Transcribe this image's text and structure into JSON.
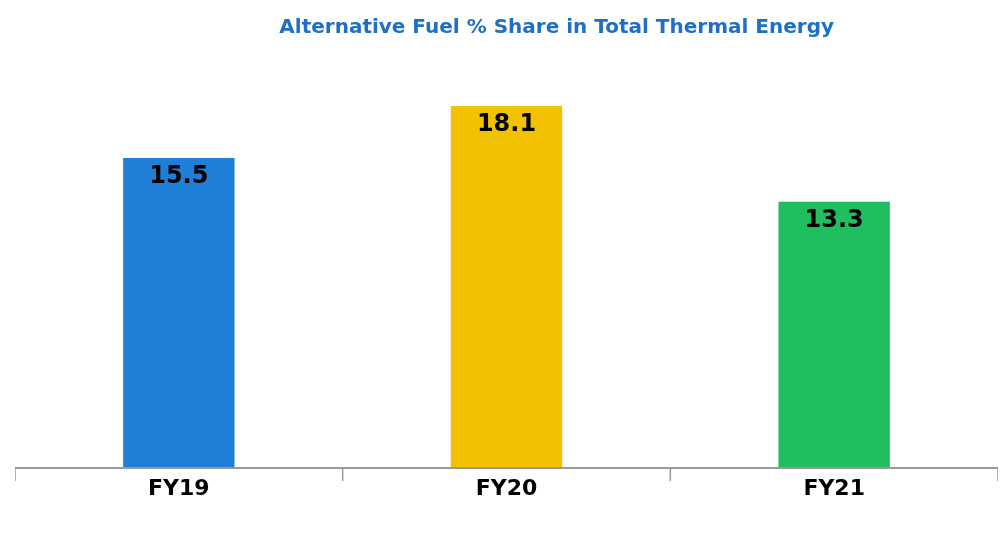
{
  "chart_data": {
    "type": "bar",
    "title": "Alternative Fuel % Share in Total Thermal Energy",
    "categories": [
      "FY19",
      "FY20",
      "FY21"
    ],
    "values": [
      15.5,
      18.1,
      13.3
    ],
    "colors": [
      "#1f7fd6",
      "#f2c200",
      "#1fbf60"
    ],
    "data_labels": true
  }
}
